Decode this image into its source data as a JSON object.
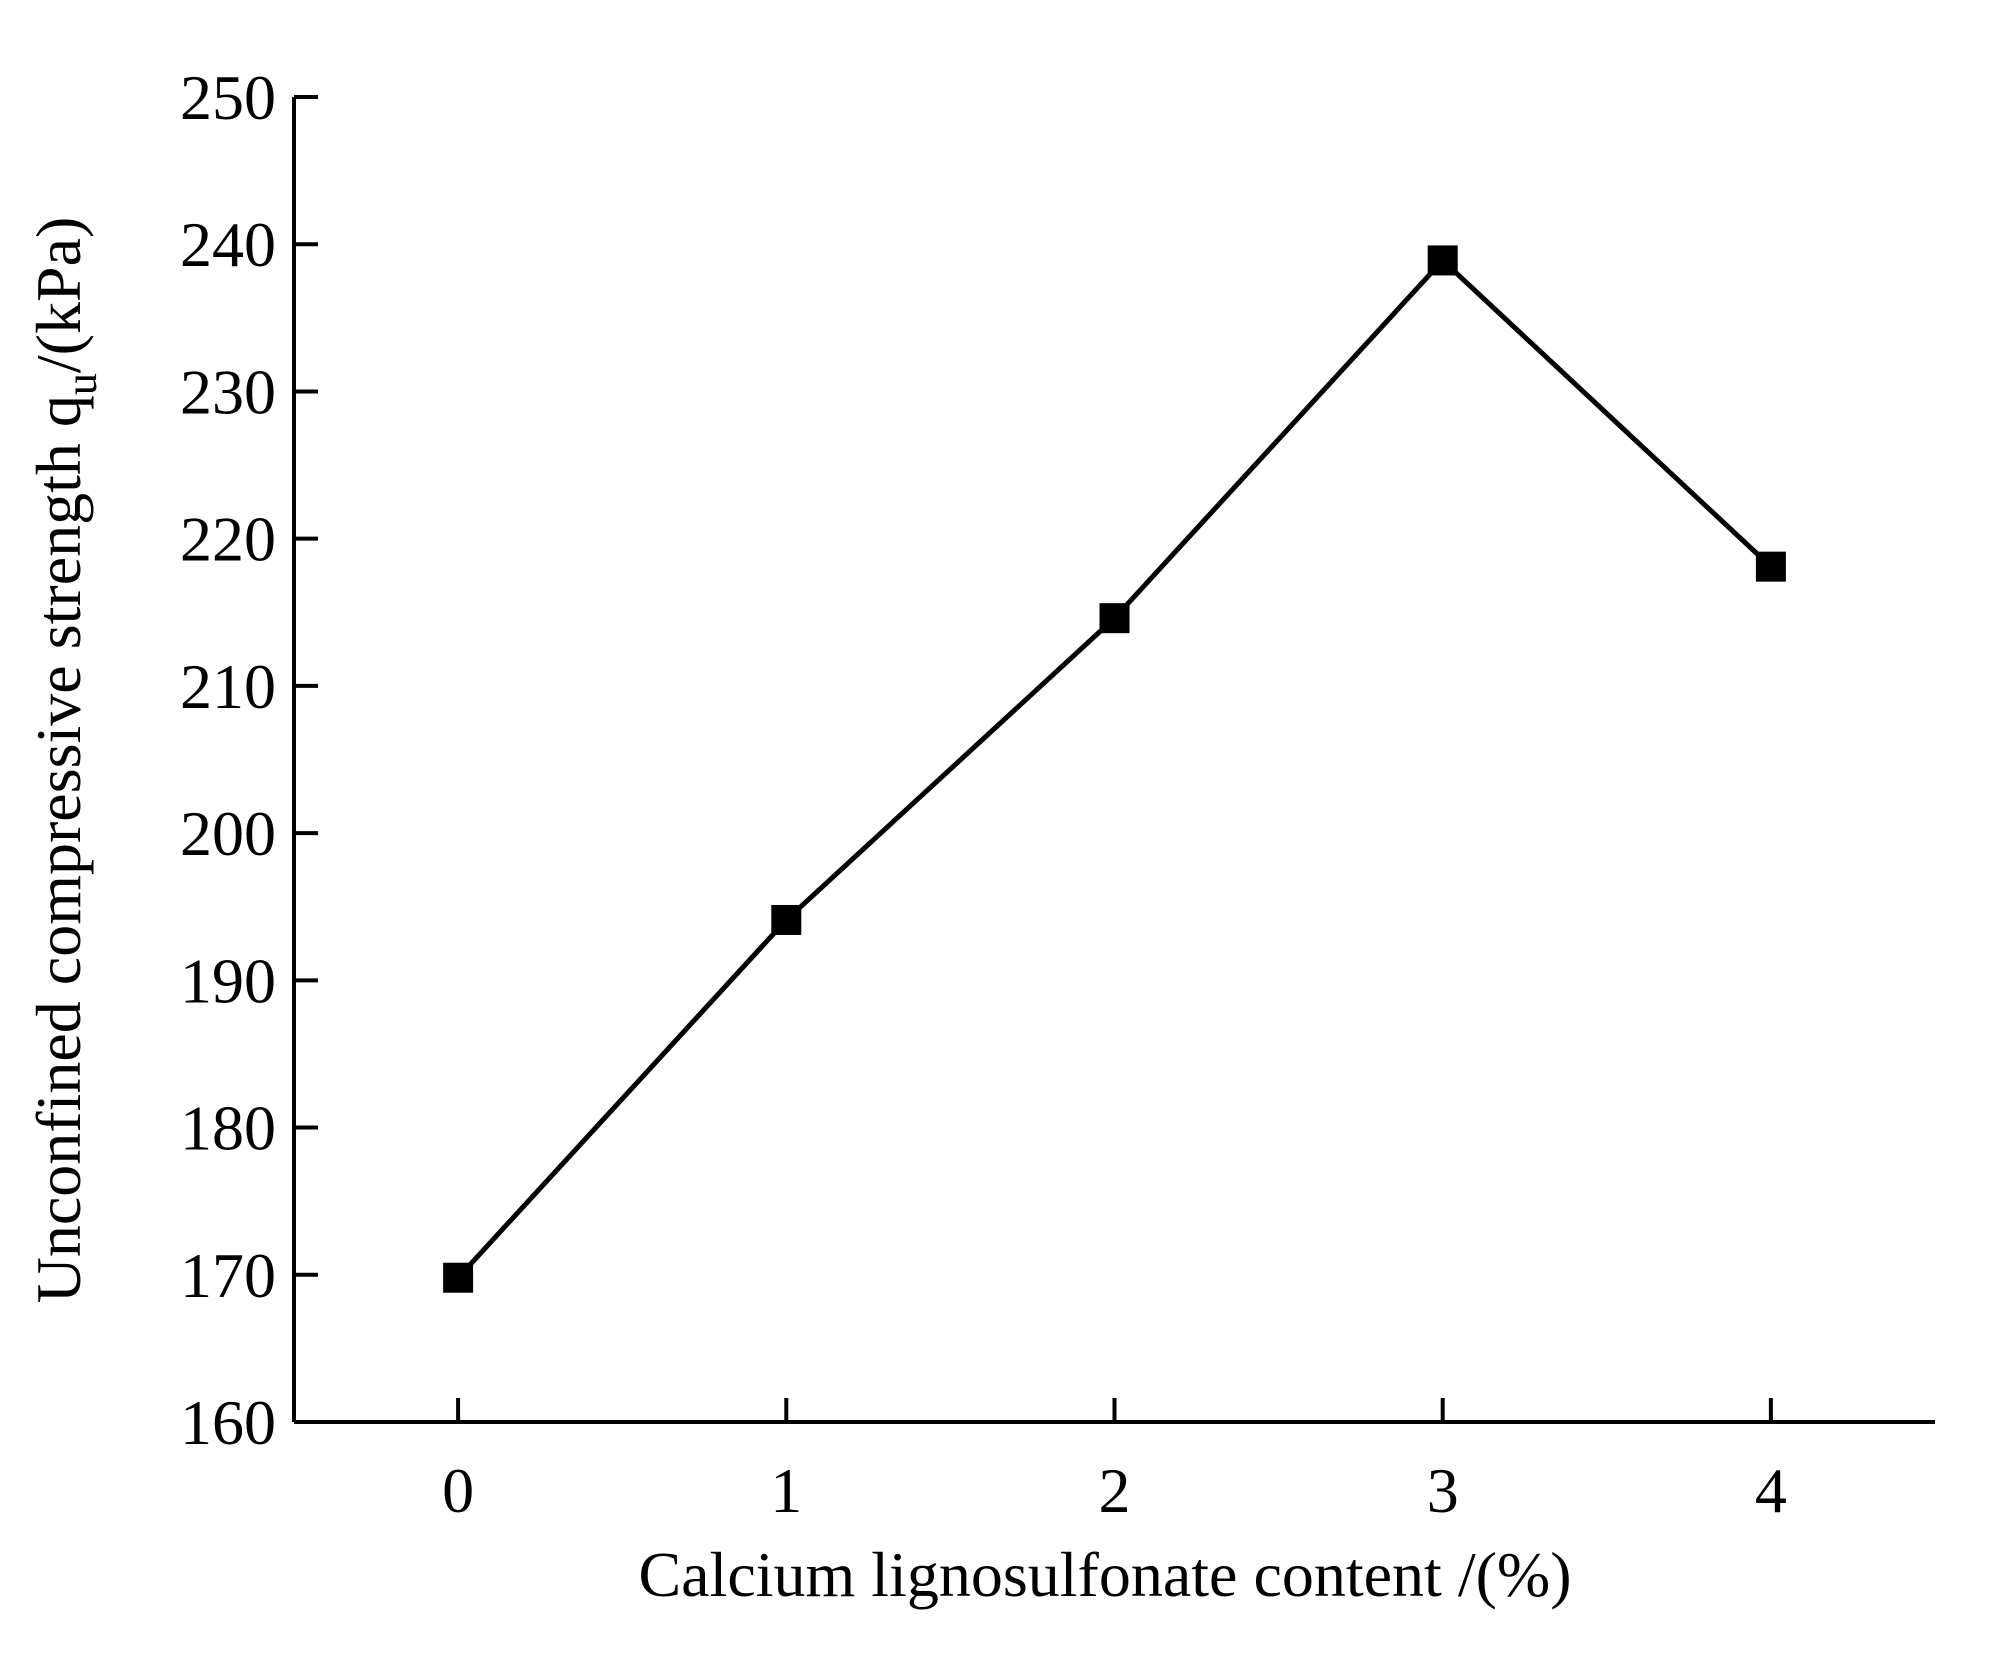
{
  "chart_data": {
    "type": "line",
    "title": "",
    "xlabel": "Calcium lignosulfonate content /(%)",
    "ylabel": {
      "main": "Unconfined compressive strength q",
      "sub": "u",
      "suffix": "/(kPa)"
    },
    "x": [
      0,
      1,
      2,
      3,
      4
    ],
    "xticks": [
      "0",
      "1",
      "2",
      "3",
      "4"
    ],
    "xlim": [
      -0.5,
      4.5
    ],
    "yticks": [
      "160",
      "170",
      "180",
      "190",
      "200",
      "210",
      "220",
      "230",
      "240",
      "250"
    ],
    "ylim": [
      160,
      250
    ],
    "grid": false,
    "series": [
      {
        "values": [
          169.8,
          194.1,
          214.6,
          238.9,
          218.1
        ],
        "marker": "square",
        "color": "#000000"
      }
    ]
  }
}
